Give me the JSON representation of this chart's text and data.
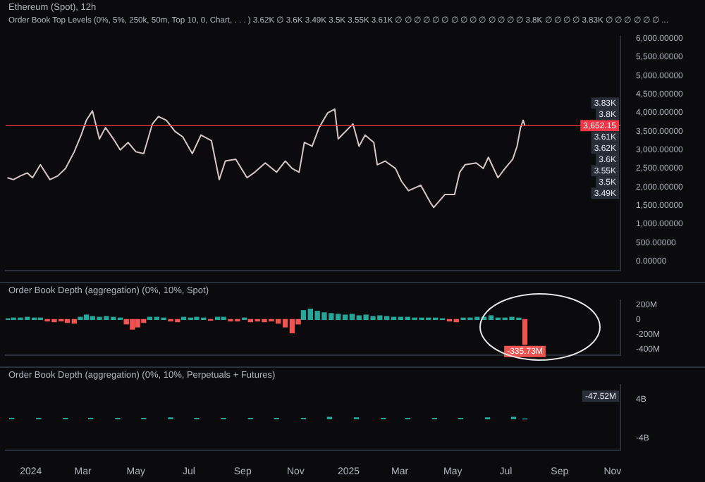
{
  "chart_data": [
    {
      "type": "line",
      "title": "Ethereum (Spot), 12h",
      "subtitle": "Order Book Top Levels (0%, 5%, 250k, 50m, Top 10, 0, Chart, . . . ) 3.62K ∅ 3.6K 3.49K 3.5K 3.55K 3.61K ∅ ∅ ∅ ∅ ∅ ∅ ∅ ∅ ∅ ∅ ∅ ∅ ∅ ∅ 3.8K ∅ ∅ ∅ ∅ 3.83K ∅ ∅ ∅ ∅ ∅ ∅ ...",
      "x": [
        "2023-12-05",
        "2023-12-12",
        "2023-12-20",
        "2023-12-28",
        "2024-01-03",
        "2024-01-12",
        "2024-01-23",
        "2024-02-01",
        "2024-02-10",
        "2024-02-20",
        "2024-02-28",
        "2024-03-05",
        "2024-03-12",
        "2024-03-20",
        "2024-03-27",
        "2024-04-05",
        "2024-04-13",
        "2024-04-22",
        "2024-05-01",
        "2024-05-10",
        "2024-05-20",
        "2024-05-27",
        "2024-06-05",
        "2024-06-15",
        "2024-06-24",
        "2024-07-05",
        "2024-07-15",
        "2024-07-27",
        "2024-08-05",
        "2024-08-12",
        "2024-08-24",
        "2024-09-06",
        "2024-09-15",
        "2024-09-27",
        "2024-10-10",
        "2024-10-20",
        "2024-10-28",
        "2024-11-05",
        "2024-11-11",
        "2024-11-20",
        "2024-11-28",
        "2024-12-08",
        "2024-12-16",
        "2024-12-20",
        "2025-01-06",
        "2025-01-13",
        "2025-01-20",
        "2025-01-30",
        "2025-02-03",
        "2025-02-12",
        "2025-02-24",
        "2025-03-03",
        "2025-03-11",
        "2025-03-25",
        "2025-04-06",
        "2025-04-09",
        "2025-04-22",
        "2025-05-03",
        "2025-05-09",
        "2025-05-15",
        "2025-05-28",
        "2025-06-05",
        "2025-06-11",
        "2025-06-22",
        "2025-06-30",
        "2025-07-09",
        "2025-07-14",
        "2025-07-18",
        "2025-07-21",
        "2025-07-23"
      ],
      "series": [
        {
          "color": "#d8c6c6",
          "values": [
            2250,
            2200,
            2300,
            2380,
            2250,
            2600,
            2200,
            2300,
            2500,
            2950,
            3400,
            3800,
            4050,
            3300,
            3600,
            3300,
            3000,
            3200,
            2950,
            2900,
            3700,
            3900,
            3800,
            3500,
            3350,
            2900,
            3400,
            3250,
            2200,
            2700,
            2750,
            2250,
            2400,
            2650,
            2400,
            2700,
            2500,
            2400,
            3200,
            3100,
            3600,
            4000,
            4100,
            3300,
            3700,
            3100,
            3400,
            3200,
            2600,
            2700,
            2500,
            2150,
            1900,
            2050,
            1550,
            1450,
            1800,
            1800,
            2400,
            2600,
            2650,
            2500,
            2800,
            2250,
            2500,
            2750,
            3100,
            3600,
            3800,
            3660
          ]
        }
      ],
      "xlim": [
        "2023-12-03",
        "2025-11-10"
      ],
      "ylim": [
        -250,
        6050
      ],
      "yticks": [
        {
          "value": 0,
          "label": "0.00000"
        },
        {
          "value": 500,
          "label": "500.00000"
        },
        {
          "value": 1000,
          "label": "1,000.00000"
        },
        {
          "value": 1500,
          "label": "1,500.00000"
        },
        {
          "value": 2000,
          "label": "2,000.00000"
        },
        {
          "value": 2500,
          "label": "2,500.00000"
        },
        {
          "value": 3000,
          "label": "3,000.00000"
        },
        {
          "value": 3500,
          "label": "3,500.00000"
        },
        {
          "value": 4000,
          "label": "4,000.00000"
        },
        {
          "value": 4500,
          "label": "4,500.00000"
        },
        {
          "value": 5000,
          "label": "5,000.00000"
        },
        {
          "value": 5500,
          "label": "5,500.00000"
        },
        {
          "value": 6000,
          "label": "6,000.00000"
        }
      ],
      "tick_labels": "y",
      "ref_lines": [
        {
          "axis": "y",
          "value": 3652.15,
          "label": "3,652.15",
          "color": "#f23645"
        }
      ],
      "annotations": [
        "3.83K",
        "3.8K",
        "3.61K",
        "3.62K",
        "3.6K",
        "3.55K",
        "3.5K",
        "3.49K"
      ]
    },
    {
      "type": "bar",
      "title": "Order Book Depth (aggregation) (0%, 10%, Spot)",
      "x": [
        "2023-12-05",
        "2023-12-12",
        "2023-12-20",
        "2023-12-28",
        "2024-01-05",
        "2024-01-12",
        "2024-01-20",
        "2024-01-28",
        "2024-02-05",
        "2024-02-12",
        "2024-02-20",
        "2024-02-27",
        "2024-03-05",
        "2024-03-12",
        "2024-03-20",
        "2024-03-28",
        "2024-04-05",
        "2024-04-13",
        "2024-04-20",
        "2024-04-27",
        "2024-05-03",
        "2024-05-10",
        "2024-05-17",
        "2024-05-25",
        "2024-06-02",
        "2024-06-10",
        "2024-06-18",
        "2024-06-25",
        "2024-07-03",
        "2024-07-10",
        "2024-07-18",
        "2024-07-26",
        "2024-08-03",
        "2024-08-10",
        "2024-08-18",
        "2024-08-26",
        "2024-09-03",
        "2024-09-10",
        "2024-09-18",
        "2024-09-26",
        "2024-10-04",
        "2024-10-12",
        "2024-10-20",
        "2024-10-28",
        "2024-11-04",
        "2024-11-10",
        "2024-11-18",
        "2024-11-26",
        "2024-12-04",
        "2024-12-12",
        "2024-12-20",
        "2024-12-28",
        "2025-01-05",
        "2025-01-13",
        "2025-01-21",
        "2025-01-29",
        "2025-02-06",
        "2025-02-14",
        "2025-02-22",
        "2025-03-02",
        "2025-03-10",
        "2025-03-18",
        "2025-03-26",
        "2025-04-03",
        "2025-04-11",
        "2025-04-19",
        "2025-04-27",
        "2025-05-05",
        "2025-05-13",
        "2025-05-21",
        "2025-05-29",
        "2025-06-06",
        "2025-06-14",
        "2025-06-22",
        "2025-06-30",
        "2025-07-08",
        "2025-07-16",
        "2025-07-23"
      ],
      "values": [
        10,
        20,
        20,
        30,
        20,
        20,
        -20,
        -30,
        -20,
        -40,
        -50,
        30,
        60,
        40,
        30,
        40,
        30,
        20,
        -60,
        -130,
        -100,
        -40,
        30,
        30,
        20,
        -20,
        -30,
        30,
        20,
        30,
        20,
        -10,
        30,
        30,
        -20,
        -20,
        20,
        -30,
        -20,
        -30,
        -20,
        -50,
        -100,
        -180,
        -60,
        120,
        140,
        110,
        90,
        80,
        70,
        60,
        70,
        50,
        60,
        40,
        50,
        40,
        30,
        30,
        30,
        20,
        20,
        20,
        20,
        10,
        -20,
        -30,
        20,
        20,
        30,
        30,
        50,
        20,
        20,
        30,
        20,
        -335.73
      ],
      "colors": [
        "#26a69a",
        "#26a69a",
        "#26a69a",
        "#26a69a",
        "#26a69a",
        "#26a69a",
        "#f05350",
        "#f05350",
        "#f05350",
        "#f05350",
        "#f05350",
        "#26a69a",
        "#26a69a",
        "#26a69a",
        "#26a69a",
        "#26a69a",
        "#26a69a",
        "#26a69a",
        "#f05350",
        "#f05350",
        "#f05350",
        "#f05350",
        "#26a69a",
        "#26a69a",
        "#26a69a",
        "#f05350",
        "#f05350",
        "#26a69a",
        "#26a69a",
        "#26a69a",
        "#26a69a",
        "#f05350",
        "#26a69a",
        "#26a69a",
        "#f05350",
        "#f05350",
        "#26a69a",
        "#f05350",
        "#f05350",
        "#f05350",
        "#f05350",
        "#f05350",
        "#f05350",
        "#f05350",
        "#f05350",
        "#26a69a",
        "#26a69a",
        "#26a69a",
        "#26a69a",
        "#26a69a",
        "#26a69a",
        "#26a69a",
        "#26a69a",
        "#26a69a",
        "#26a69a",
        "#26a69a",
        "#26a69a",
        "#26a69a",
        "#26a69a",
        "#26a69a",
        "#26a69a",
        "#26a69a",
        "#26a69a",
        "#26a69a",
        "#26a69a",
        "#26a69a",
        "#f05350",
        "#f05350",
        "#26a69a",
        "#26a69a",
        "#26a69a",
        "#26a69a",
        "#26a69a",
        "#26a69a",
        "#26a69a",
        "#26a69a",
        "#26a69a",
        "#f05350"
      ],
      "value_labels": [
        null,
        null,
        null,
        null,
        null,
        null,
        null,
        null,
        null,
        null,
        null,
        null,
        null,
        null,
        null,
        null,
        null,
        null,
        null,
        null,
        null,
        null,
        null,
        null,
        null,
        null,
        null,
        null,
        null,
        null,
        null,
        null,
        null,
        null,
        null,
        null,
        null,
        null,
        null,
        null,
        null,
        null,
        null,
        null,
        null,
        null,
        null,
        null,
        null,
        null,
        null,
        null,
        null,
        null,
        null,
        null,
        null,
        null,
        null,
        null,
        null,
        null,
        null,
        null,
        null,
        null,
        null,
        null,
        null,
        null,
        null,
        null,
        null,
        null,
        null,
        null,
        null,
        "-335.73M"
      ],
      "xlim": [
        "2023-12-03",
        "2025-11-10"
      ],
      "ylim": [
        -480,
        260
      ],
      "yticks": [
        {
          "value": 200,
          "label": "200M"
        },
        0,
        {
          "value": -200,
          "label": "-200M"
        },
        {
          "value": -400,
          "label": "-400M"
        }
      ],
      "tick_labels": "y"
    },
    {
      "type": "bar",
      "title": "Order Book Depth (aggregation) (0%, 10%, Perpetuals + Futures)",
      "x": [
        "2023-12-10",
        "2024-01-10",
        "2024-02-10",
        "2024-03-10",
        "2024-04-10",
        "2024-05-10",
        "2024-06-10",
        "2024-07-10",
        "2024-08-10",
        "2024-09-10",
        "2024-10-10",
        "2024-11-10",
        "2024-12-10",
        "2025-01-10",
        "2025-02-10",
        "2025-03-10",
        "2025-04-10",
        "2025-05-10",
        "2025-06-10",
        "2025-07-10",
        "2025-07-23"
      ],
      "values": [
        0.1,
        0.1,
        0.1,
        0.1,
        0.1,
        0.1,
        0.2,
        0.1,
        0.1,
        0.1,
        0.1,
        0.1,
        0.3,
        0.2,
        0.1,
        0.1,
        0.1,
        0.1,
        0.2,
        0.3,
        -0.05
      ],
      "color": "#26a69a",
      "annotations": [
        "-47.52M"
      ],
      "xlim": [
        "2023-12-03",
        "2025-11-10"
      ],
      "ylim": [
        -6.5,
        7
      ],
      "yticks": [
        {
          "value": 4,
          "label": "4B"
        },
        {
          "value": -4,
          "label": "-4B"
        }
      ],
      "xticks": [
        {
          "value": "2024-01-01",
          "label": "2024"
        },
        {
          "value": "2024-03-01",
          "label": "Mar"
        },
        {
          "value": "2024-05-01",
          "label": "May"
        },
        {
          "value": "2024-07-01",
          "label": "Jul"
        },
        {
          "value": "2024-09-01",
          "label": "Sep"
        },
        {
          "value": "2024-11-01",
          "label": "Nov"
        },
        {
          "value": "2025-01-01",
          "label": "2025"
        },
        {
          "value": "2025-03-01",
          "label": "Mar"
        },
        {
          "value": "2025-05-01",
          "label": "May"
        },
        {
          "value": "2025-07-01",
          "label": "Jul"
        },
        {
          "value": "2025-09-01",
          "label": "Sep"
        },
        {
          "value": "2025-11-01",
          "label": "Nov"
        }
      ]
    }
  ]
}
